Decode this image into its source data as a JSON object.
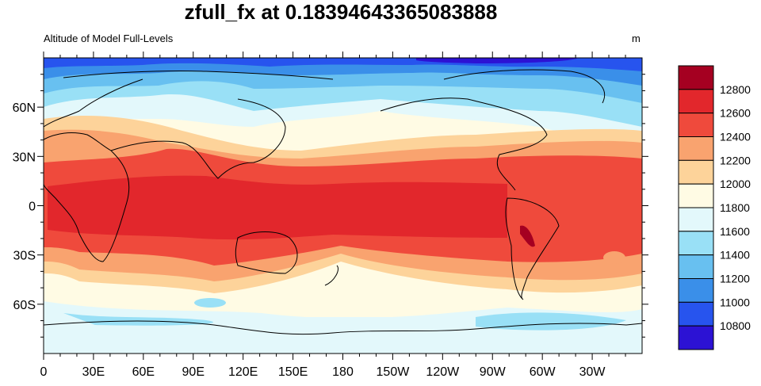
{
  "title": "zfull_fx at 0.18394643365083888",
  "left_subtitle": "Altitude of Model Full-Levels",
  "right_subtitle": "m",
  "map": {
    "projection": "cylindrical-equidistant",
    "center_longitude": 180,
    "lat_ticks": [
      {
        "lat": 60,
        "label": "60N"
      },
      {
        "lat": 30,
        "label": "30N"
      },
      {
        "lat": 0,
        "label": "0"
      },
      {
        "lat": -30,
        "label": "30S"
      },
      {
        "lat": -60,
        "label": "60S"
      }
    ],
    "lon_ticks": [
      {
        "lon": 0,
        "label": "0"
      },
      {
        "lon": 30,
        "label": "30E"
      },
      {
        "lon": 60,
        "label": "60E"
      },
      {
        "lon": 90,
        "label": "90E"
      },
      {
        "lon": 120,
        "label": "120E"
      },
      {
        "lon": 150,
        "label": "150E"
      },
      {
        "lon": 180,
        "label": "180"
      },
      {
        "lon": 210,
        "label": "150W"
      },
      {
        "lon": 240,
        "label": "120W"
      },
      {
        "lon": 270,
        "label": "90W"
      },
      {
        "lon": 300,
        "label": "60W"
      },
      {
        "lon": 330,
        "label": "30W"
      }
    ]
  },
  "colorbar": {
    "labels": [
      "12800",
      "12600",
      "12400",
      "12200",
      "12000",
      "11800",
      "11600",
      "11400",
      "11200",
      "11000",
      "10800"
    ],
    "colors": [
      "#a50021",
      "#e2272c",
      "#ef4a3c",
      "#f9a36f",
      "#fdd39a",
      "#fffbe4",
      "#e3f8fb",
      "#99e0f6",
      "#68c0f0",
      "#3a8fe9",
      "#2754ee",
      "#2c12d4"
    ]
  }
}
